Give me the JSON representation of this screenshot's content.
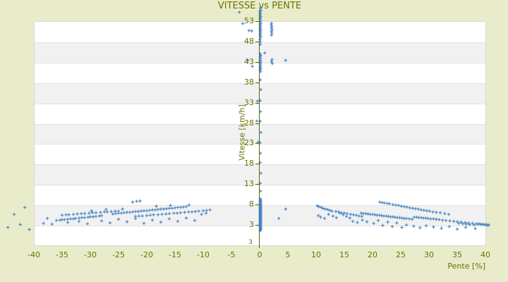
{
  "page": {
    "background_color": "#e8ecca"
  },
  "chart_data": {
    "type": "scatter",
    "title": "VITESSE vs PENTE",
    "xlabel": "Pente [%]",
    "ylabel": "Vitesse [km/h]",
    "xlim": [
      -40,
      40
    ],
    "ylim": [
      -2,
      53
    ],
    "xticks": [
      -40,
      -35,
      -30,
      -25,
      -20,
      -15,
      -10,
      -5,
      0,
      5,
      10,
      15,
      20,
      25,
      30,
      35,
      40
    ],
    "yticks": [
      53,
      48,
      43,
      38,
      33,
      28,
      23,
      18,
      13,
      8,
      3
    ],
    "corner_tick_label": "3",
    "grid": "alternating horizontal bands, horizontal gridlines only",
    "legend": "none",
    "marker": "plus",
    "colors": {
      "marker": "#3a7cc0",
      "axis_line": "#5f6500",
      "text": "#6b7100",
      "plot_background": "#ffffff",
      "band": "#f1f1f1",
      "plot_border": "#d8d8d8",
      "page_background": "#e8ecca"
    },
    "points": [
      [
        -36,
        4.1
      ],
      [
        -35.4,
        4.2
      ],
      [
        -35,
        4.3
      ],
      [
        -34.6,
        4.3
      ],
      [
        -34,
        4.4
      ],
      [
        -33.5,
        4.5
      ],
      [
        -33,
        4.5
      ],
      [
        -32.6,
        4.6
      ],
      [
        -32,
        4.7
      ],
      [
        -31.5,
        4.8
      ],
      [
        -31,
        4.8
      ],
      [
        -30.4,
        4.9
      ],
      [
        -30,
        5
      ],
      [
        -29.5,
        5
      ],
      [
        -29,
        5.1
      ],
      [
        -28.4,
        5.2
      ],
      [
        -28,
        5.3
      ],
      [
        -35,
        5.4
      ],
      [
        -34.3,
        5.5
      ],
      [
        -33.8,
        5.5
      ],
      [
        -33,
        5.6
      ],
      [
        -32.3,
        5.7
      ],
      [
        -31.6,
        5.8
      ],
      [
        -31,
        5.8
      ],
      [
        -30.2,
        5.9
      ],
      [
        -29.6,
        6
      ],
      [
        -29,
        6
      ],
      [
        -28.2,
        6.1
      ],
      [
        -27.5,
        6.2
      ],
      [
        -27,
        6.2
      ],
      [
        -26.3,
        6.3
      ],
      [
        -25.6,
        6.4
      ],
      [
        -25,
        6.4
      ],
      [
        -26,
        5.7
      ],
      [
        -25.5,
        5.8
      ],
      [
        -25,
        5.9
      ],
      [
        -24.5,
        5.9
      ],
      [
        -24,
        6
      ],
      [
        -23.5,
        6.1
      ],
      [
        -23,
        6.1
      ],
      [
        -22.5,
        6.2
      ],
      [
        -22,
        6.3
      ],
      [
        -21.5,
        6.3
      ],
      [
        -21,
        6.4
      ],
      [
        -20.5,
        6.5
      ],
      [
        -20,
        6.5
      ],
      [
        -19.5,
        6.6
      ],
      [
        -19,
        6.7
      ],
      [
        -18.5,
        6.7
      ],
      [
        -18,
        6.8
      ],
      [
        -17.5,
        6.9
      ],
      [
        -17,
        6.9
      ],
      [
        -16.5,
        7
      ],
      [
        -16,
        7.1
      ],
      [
        -15.5,
        7.1
      ],
      [
        -15,
        7.2
      ],
      [
        -14.5,
        7.3
      ],
      [
        -14,
        7.3
      ],
      [
        -13.5,
        7.4
      ],
      [
        -13,
        7.5
      ],
      [
        -22,
        5.1
      ],
      [
        -21.4,
        5.2
      ],
      [
        -20.8,
        5.2
      ],
      [
        -20,
        5.3
      ],
      [
        -19.4,
        5.4
      ],
      [
        -18.8,
        5.5
      ],
      [
        -18,
        5.5
      ],
      [
        -17.3,
        5.6
      ],
      [
        -16.6,
        5.7
      ],
      [
        -16,
        5.8
      ],
      [
        -15.2,
        5.9
      ],
      [
        -14.6,
        5.9
      ],
      [
        -14,
        6
      ],
      [
        -13.3,
        6.1
      ],
      [
        -12.6,
        6.2
      ],
      [
        -12,
        6.2
      ],
      [
        -11.4,
        6.3
      ],
      [
        -10.8,
        6.4
      ],
      [
        -10,
        6.5
      ],
      [
        -9.4,
        6.6
      ],
      [
        -8.8,
        6.7
      ],
      [
        -22.5,
        8.6
      ],
      [
        -21.8,
        8.8
      ],
      [
        -21.2,
        8.9
      ],
      [
        -38.3,
        3.4
      ],
      [
        -37.6,
        4.6
      ],
      [
        -36.8,
        3.2
      ],
      [
        -34,
        3.6
      ],
      [
        -32,
        3.9
      ],
      [
        -30.5,
        3.3
      ],
      [
        -28,
        4
      ],
      [
        -26.5,
        3.5
      ],
      [
        -25,
        4.4
      ],
      [
        -23.5,
        3.8
      ],
      [
        -22,
        4.6
      ],
      [
        -20.5,
        3.4
      ],
      [
        -19,
        4.2
      ],
      [
        -17.5,
        3.7
      ],
      [
        -16,
        4.5
      ],
      [
        -14.5,
        3.9
      ],
      [
        -13,
        4.7
      ],
      [
        -11.5,
        4.1
      ],
      [
        -10.3,
        5.6
      ],
      [
        -9.5,
        5.9
      ],
      [
        -12.5,
        7.9
      ],
      [
        -15.8,
        7.8
      ],
      [
        -18.3,
        7.6
      ],
      [
        -24.3,
        6.9
      ],
      [
        -27.2,
        6.8
      ],
      [
        -29.8,
        6.5
      ],
      [
        -44.6,
        2.4
      ],
      [
        -43.5,
        5.6
      ],
      [
        -42.4,
        3.1
      ],
      [
        -41.6,
        7.3
      ],
      [
        -40.8,
        1.9
      ],
      [
        0.1,
        56.2
      ],
      [
        0.2,
        55.7
      ],
      [
        0.1,
        55.3
      ],
      [
        0.15,
        54.9
      ],
      [
        0.1,
        54.5
      ],
      [
        0.2,
        54.1
      ],
      [
        0.1,
        53.7
      ],
      [
        0.15,
        53.3
      ],
      [
        0.1,
        52.9
      ],
      [
        0.2,
        52.5
      ],
      [
        0.1,
        52.1
      ],
      [
        0.15,
        51.7
      ],
      [
        0.1,
        51.3
      ],
      [
        0.2,
        50.9
      ],
      [
        0.1,
        50.5
      ],
      [
        0.15,
        50.1
      ],
      [
        0.1,
        49.7
      ],
      [
        0.2,
        49.2
      ],
      [
        0.1,
        48.6
      ],
      [
        0.15,
        48
      ],
      [
        0.1,
        47.3
      ],
      [
        0.1,
        45
      ],
      [
        0.2,
        44.6
      ],
      [
        0.1,
        44.2
      ],
      [
        0.15,
        43.8
      ],
      [
        0.1,
        43.4
      ],
      [
        0.2,
        43
      ],
      [
        0.1,
        42.6
      ],
      [
        0.15,
        42.2
      ],
      [
        0.1,
        41.8
      ],
      [
        0.2,
        41.4
      ],
      [
        0.1,
        41
      ],
      [
        0.15,
        40.6
      ],
      [
        0.1,
        38.6
      ],
      [
        0.2,
        36.2
      ],
      [
        0.1,
        33.5
      ],
      [
        0.15,
        30.8
      ],
      [
        0.1,
        28.4
      ],
      [
        0.2,
        25.7
      ],
      [
        0.1,
        23.2
      ],
      [
        0.15,
        20.6
      ],
      [
        0.1,
        18.3
      ],
      [
        0.2,
        15.7
      ],
      [
        0.1,
        13.2
      ],
      [
        0.15,
        11.3
      ],
      [
        0.1,
        1.6
      ],
      [
        0.15,
        1.8
      ],
      [
        0.1,
        1.9
      ],
      [
        0.2,
        2.1
      ],
      [
        0.1,
        2.2
      ],
      [
        0.15,
        2.4
      ],
      [
        0.1,
        2.5
      ],
      [
        0.2,
        2.7
      ],
      [
        0.1,
        2.8
      ],
      [
        0.15,
        3
      ],
      [
        0.1,
        3.1
      ],
      [
        0.2,
        3.3
      ],
      [
        0.1,
        3.4
      ],
      [
        0.15,
        3.6
      ],
      [
        0.1,
        3.7
      ],
      [
        0.2,
        3.9
      ],
      [
        0.1,
        4
      ],
      [
        0.15,
        4.2
      ],
      [
        0.1,
        4.3
      ],
      [
        0.2,
        4.5
      ],
      [
        0.1,
        4.6
      ],
      [
        0.15,
        4.8
      ],
      [
        0.1,
        4.9
      ],
      [
        0.2,
        5.1
      ],
      [
        0.1,
        5.2
      ],
      [
        0.15,
        5.4
      ],
      [
        0.1,
        5.5
      ],
      [
        0.2,
        5.7
      ],
      [
        0.1,
        5.8
      ],
      [
        0.15,
        6
      ],
      [
        0.1,
        6.1
      ],
      [
        0.2,
        6.3
      ],
      [
        0.1,
        6.4
      ],
      [
        0.15,
        6.6
      ],
      [
        0.1,
        6.7
      ],
      [
        0.2,
        6.9
      ],
      [
        0.1,
        7
      ],
      [
        0.15,
        7.2
      ],
      [
        0.1,
        7.3
      ],
      [
        0.2,
        7.5
      ],
      [
        0.1,
        7.6
      ],
      [
        0.15,
        7.8
      ],
      [
        0.1,
        7.9
      ],
      [
        0.2,
        8.1
      ],
      [
        0.1,
        8.2
      ],
      [
        0.15,
        8.4
      ],
      [
        0.1,
        8.6
      ],
      [
        0.2,
        8.8
      ],
      [
        0.1,
        9
      ],
      [
        0.15,
        9.2
      ],
      [
        0.1,
        9.4
      ],
      [
        2.1,
        52.5
      ],
      [
        2.05,
        52.1
      ],
      [
        2.15,
        51.7
      ],
      [
        2.1,
        51.3
      ],
      [
        2.2,
        50.9
      ],
      [
        2.1,
        50.5
      ],
      [
        2.15,
        50.1
      ],
      [
        2.1,
        49.6
      ],
      [
        2.2,
        43.6
      ],
      [
        2.1,
        43.1
      ],
      [
        2.25,
        42.6
      ],
      [
        -3.6,
        55.2
      ],
      [
        -3,
        52.4
      ],
      [
        -1.9,
        50.7
      ],
      [
        -1.4,
        50.6
      ],
      [
        -2.1,
        43.4
      ],
      [
        -1.3,
        41.9
      ],
      [
        -0.4,
        33.4
      ],
      [
        -0.5,
        28.5
      ],
      [
        -0.3,
        23.3
      ],
      [
        4.6,
        43.4
      ],
      [
        0.9,
        45.2
      ],
      [
        3.4,
        4.6
      ],
      [
        4.6,
        6.9
      ],
      [
        10.2,
        7.7
      ],
      [
        10.5,
        7.5
      ],
      [
        10.9,
        7.3
      ],
      [
        11.2,
        7.1
      ],
      [
        11.6,
        6.9
      ],
      [
        12,
        6.8
      ],
      [
        12.4,
        6.6
      ],
      [
        12.8,
        6.4
      ],
      [
        10.4,
        5.3
      ],
      [
        10.8,
        4.9
      ],
      [
        11.5,
        4.6
      ],
      [
        12.2,
        5.6
      ],
      [
        13,
        5.2
      ],
      [
        13.6,
        4.8
      ],
      [
        14.2,
        5.9
      ],
      [
        14.8,
        5.5
      ],
      [
        15.4,
        5.1
      ],
      [
        16,
        4.7
      ],
      [
        13.5,
        6.3
      ],
      [
        14,
        6.2
      ],
      [
        14.5,
        6
      ],
      [
        15,
        5.9
      ],
      [
        15.5,
        5.8
      ],
      [
        16.1,
        5.6
      ],
      [
        16.6,
        5.5
      ],
      [
        17.1,
        5.4
      ],
      [
        17.6,
        5.2
      ],
      [
        18.1,
        5.1
      ],
      [
        18,
        5.9
      ],
      [
        18.4,
        5.8
      ],
      [
        18.8,
        5.8
      ],
      [
        19.2,
        5.7
      ],
      [
        19.6,
        5.6
      ],
      [
        20,
        5.6
      ],
      [
        20.4,
        5.5
      ],
      [
        20.8,
        5.4
      ],
      [
        21.2,
        5.4
      ],
      [
        21.6,
        5.3
      ],
      [
        22,
        5.2
      ],
      [
        22.4,
        5.2
      ],
      [
        22.8,
        5.1
      ],
      [
        23.2,
        5
      ],
      [
        23.6,
        5
      ],
      [
        24,
        4.9
      ],
      [
        24.4,
        4.8
      ],
      [
        24.8,
        4.8
      ],
      [
        25.2,
        4.7
      ],
      [
        25.6,
        4.6
      ],
      [
        26,
        4.6
      ],
      [
        26.5,
        4.5
      ],
      [
        27,
        4.4
      ],
      [
        21.3,
        8.6
      ],
      [
        21.7,
        8.5
      ],
      [
        22.1,
        8.4
      ],
      [
        22.6,
        8.3
      ],
      [
        23,
        8.2
      ],
      [
        23.6,
        8
      ],
      [
        24.1,
        7.9
      ],
      [
        24.6,
        7.8
      ],
      [
        25.1,
        7.6
      ],
      [
        25.6,
        7.5
      ],
      [
        26.1,
        7.4
      ],
      [
        26.6,
        7.2
      ],
      [
        27.1,
        7.1
      ],
      [
        27.6,
        7
      ],
      [
        28.1,
        6.9
      ],
      [
        28.6,
        6.7
      ],
      [
        29.1,
        6.6
      ],
      [
        29.6,
        6.5
      ],
      [
        30.1,
        6.4
      ],
      [
        30.7,
        6.2
      ],
      [
        31.3,
        6.1
      ],
      [
        32,
        6
      ],
      [
        32.8,
        5.8
      ],
      [
        33.5,
        5.6
      ],
      [
        27.4,
        4.9
      ],
      [
        27.8,
        4.9
      ],
      [
        28.2,
        4.8
      ],
      [
        28.6,
        4.8
      ],
      [
        29,
        4.7
      ],
      [
        29.4,
        4.7
      ],
      [
        29.8,
        4.6
      ],
      [
        30.3,
        4.5
      ],
      [
        30.8,
        4.5
      ],
      [
        31.3,
        4.4
      ],
      [
        31.8,
        4.3
      ],
      [
        32.4,
        4.2
      ],
      [
        33,
        4.1
      ],
      [
        33.7,
        4
      ],
      [
        34.4,
        3.9
      ],
      [
        35,
        3.8
      ],
      [
        35.7,
        3.7
      ],
      [
        36.4,
        3.6
      ],
      [
        37,
        3.5
      ],
      [
        37.7,
        3.4
      ],
      [
        38.4,
        3.3
      ],
      [
        39,
        3.3
      ],
      [
        39.6,
        3.2
      ],
      [
        40.2,
        3.1
      ],
      [
        40.6,
        3
      ],
      [
        16.5,
        3.9
      ],
      [
        17.3,
        3.6
      ],
      [
        18.2,
        4.2
      ],
      [
        19,
        3.8
      ],
      [
        20.2,
        3.4
      ],
      [
        21,
        4.1
      ],
      [
        21.8,
        2.9
      ],
      [
        22.7,
        3.7
      ],
      [
        23.5,
        2.6
      ],
      [
        24.3,
        3.5
      ],
      [
        25.2,
        2.4
      ],
      [
        26,
        3
      ],
      [
        27.3,
        2.7
      ],
      [
        28.4,
        2.3
      ],
      [
        29.5,
        2.8
      ],
      [
        30.8,
        2.5
      ],
      [
        32.2,
        2.2
      ],
      [
        33.6,
        2.6
      ],
      [
        35,
        2
      ],
      [
        36.5,
        2.4
      ],
      [
        38.2,
        2.1
      ],
      [
        35.3,
        3.4
      ],
      [
        36,
        3.3
      ],
      [
        36.6,
        3.2
      ],
      [
        37.2,
        3.1
      ],
      [
        38,
        3
      ],
      [
        38.7,
        3.2
      ],
      [
        39.3,
        3.1
      ],
      [
        39.9,
        3
      ],
      [
        40.4,
        2.9
      ]
    ]
  }
}
